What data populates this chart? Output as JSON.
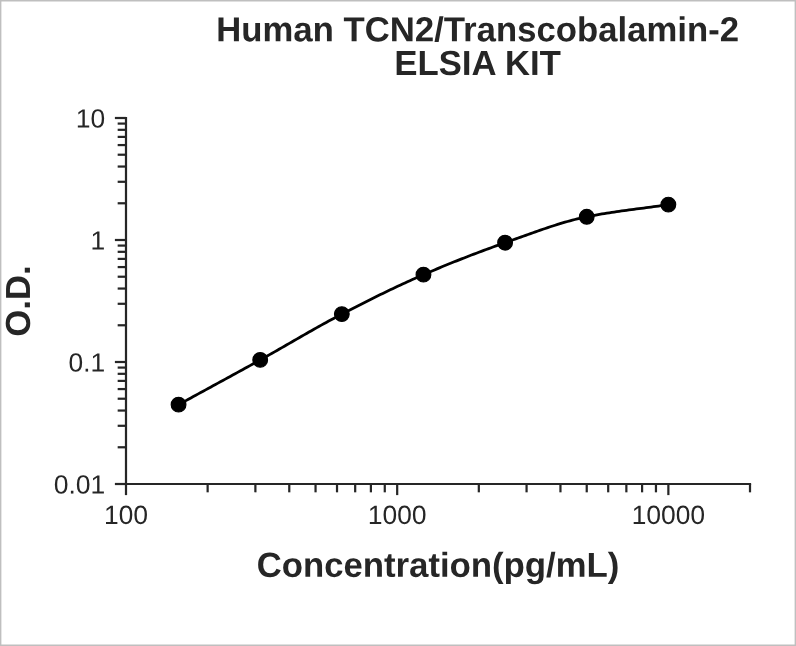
{
  "chart_data": {
    "type": "line",
    "title": "Human TCN2/Transcobalamin-2\nELSIA KIT",
    "xlabel": "Concentration(pg/mL)",
    "ylabel": "O.D.",
    "x": [
      156.25,
      312.5,
      625,
      1250,
      2500,
      5000,
      10000
    ],
    "series": [
      {
        "color": "#000000",
        "values": [
          0.0447,
          0.104,
          0.247,
          0.52,
          0.95,
          1.55,
          1.95
        ]
      }
    ],
    "log": "xy",
    "xlim": [
      100,
      20000
    ],
    "ylim": [
      0.01,
      10
    ],
    "xticks": [
      100,
      1000,
      10000
    ],
    "yticks": [
      0.01,
      0.1,
      1,
      10
    ],
    "marker": "circle",
    "line_style": "solid",
    "grid": false,
    "legend": false
  }
}
